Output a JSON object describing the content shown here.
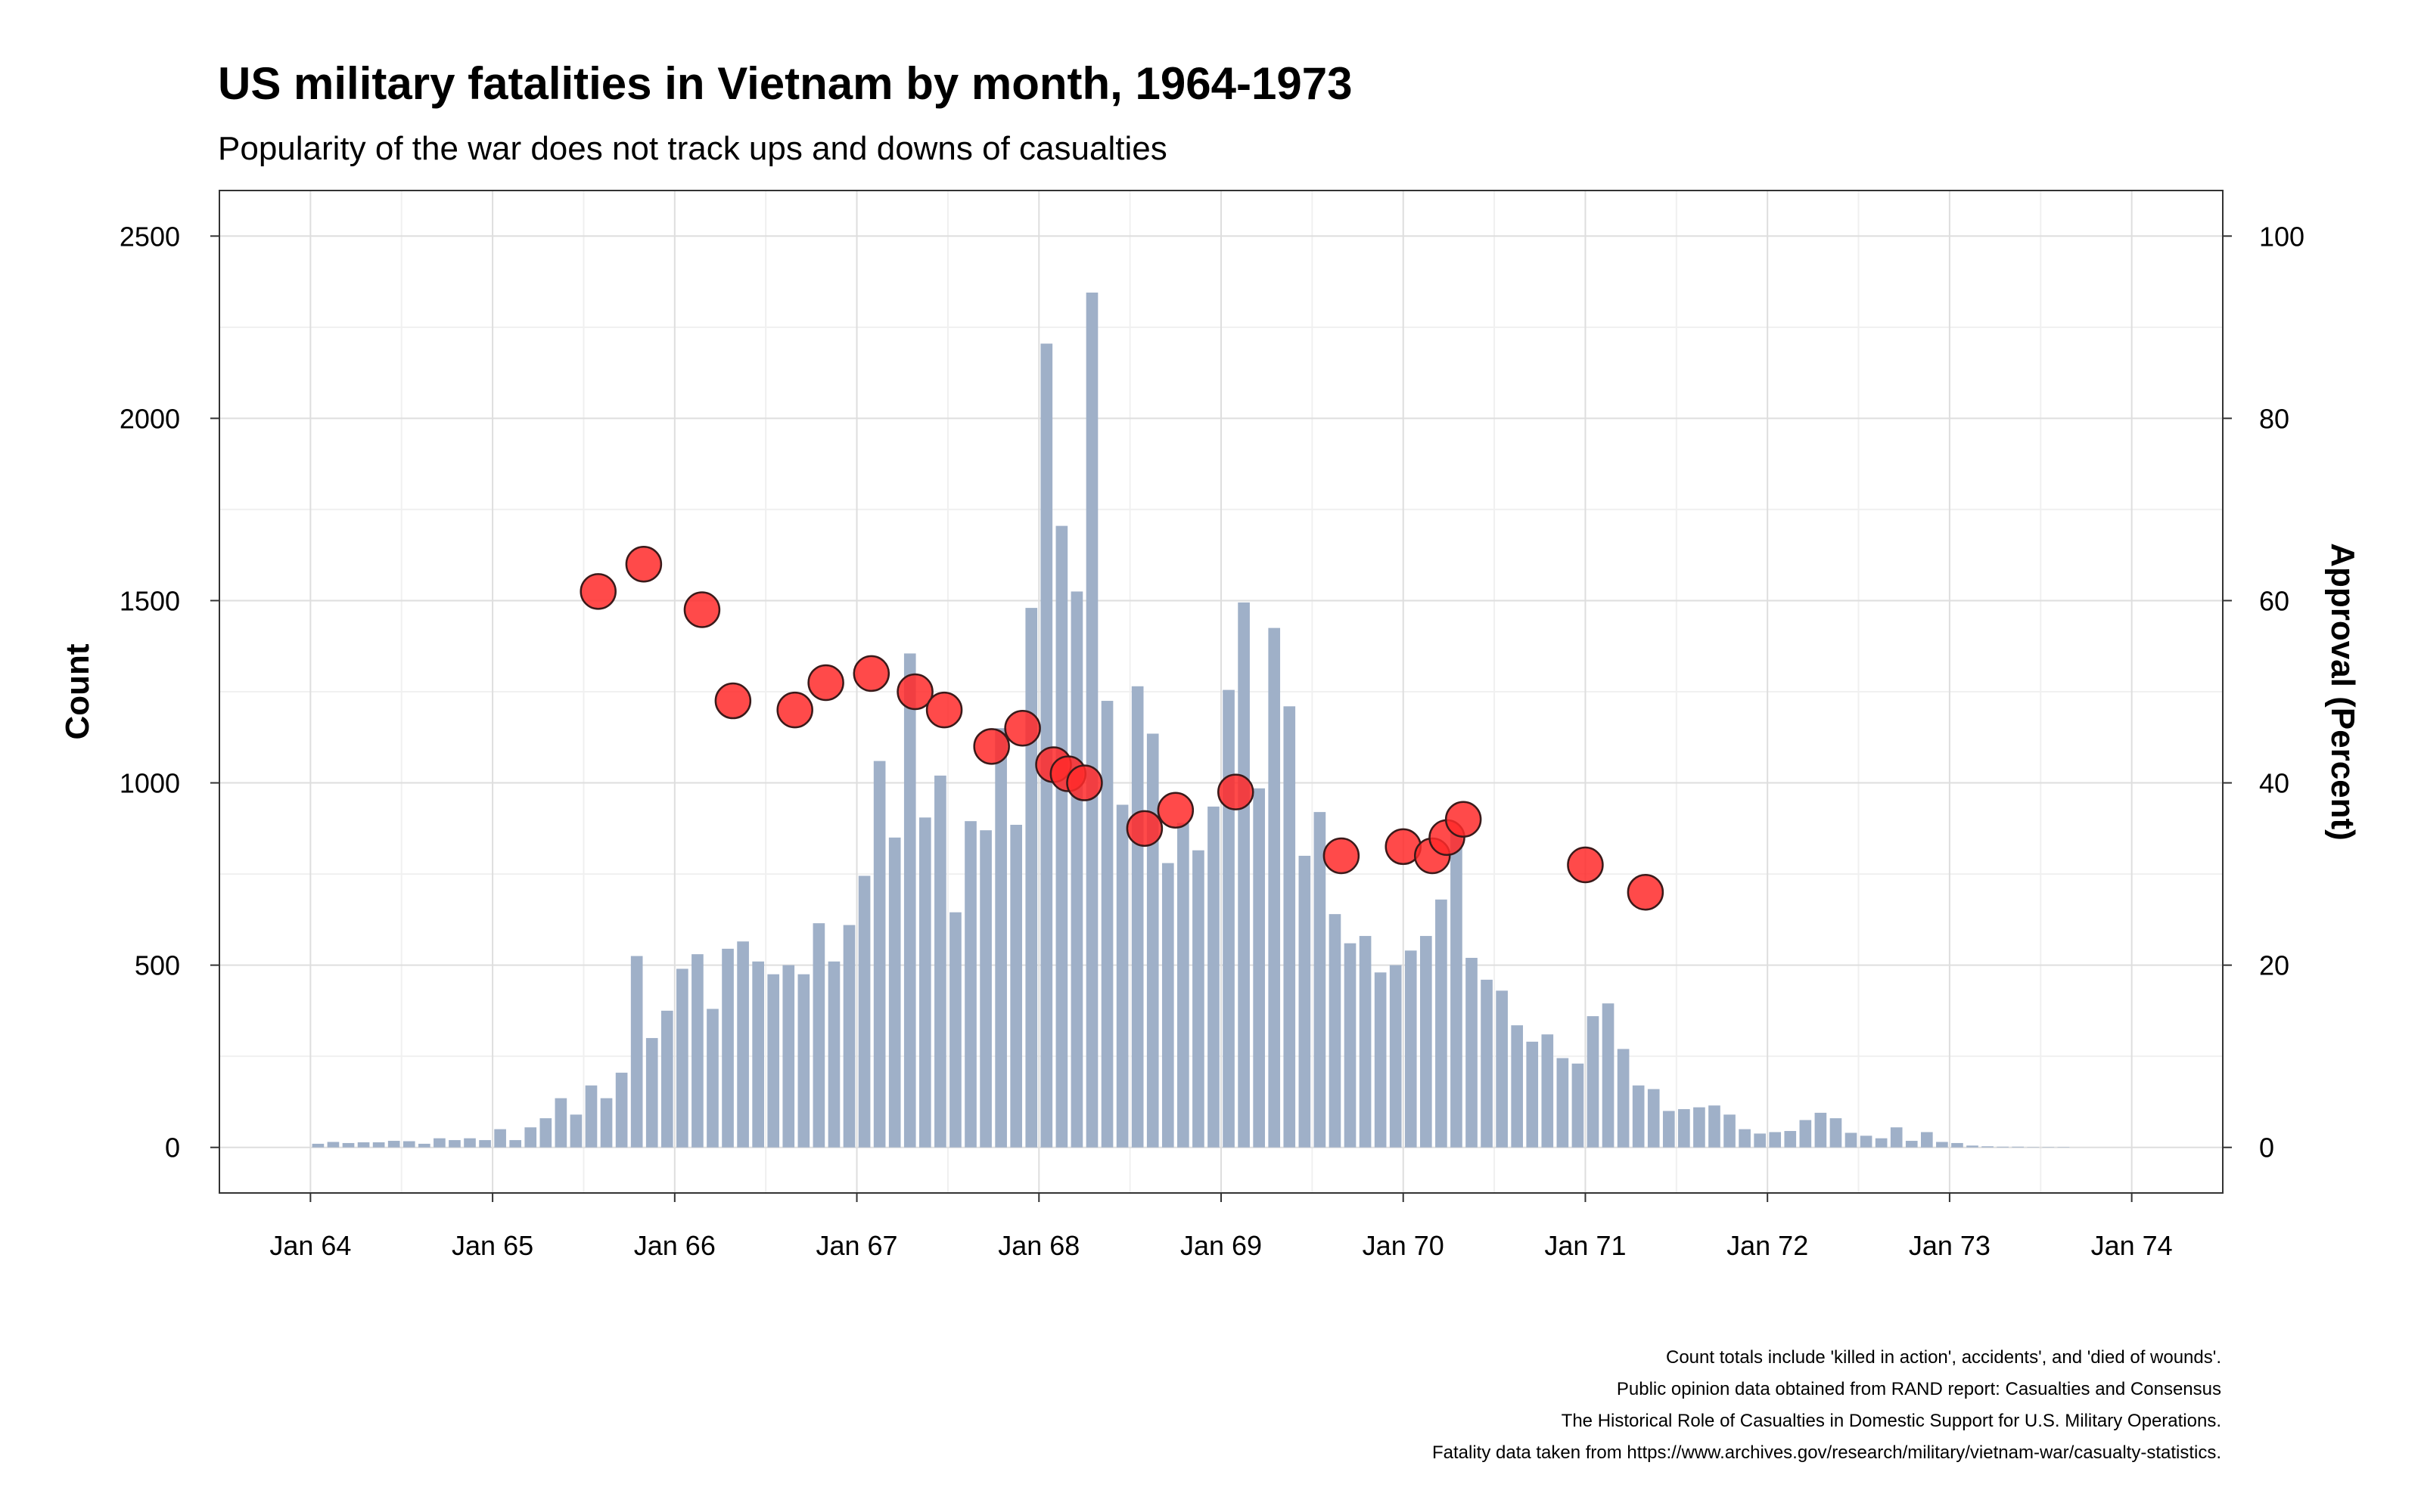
{
  "chart_data": {
    "type": "bar",
    "title": "US military fatalities in Vietnam by month, 1964-1973",
    "subtitle": "Popularity of the war does not track ups and downs of casualties",
    "ylabel": "Count",
    "y2label": "Approval (Percent)",
    "ylim": [
      -125,
      2625
    ],
    "y2lim": [
      -5,
      105
    ],
    "yticks": [
      "0",
      "500",
      "1000",
      "1500",
      "2000",
      "2500"
    ],
    "y2ticks": [
      "0",
      "20",
      "40",
      "60",
      "80",
      "100"
    ],
    "xlim": [
      1963.5,
      1974.5
    ],
    "xticks": [
      {
        "label": "Jan 64",
        "year": 1964
      },
      {
        "label": "Jan 65",
        "year": 1965
      },
      {
        "label": "Jan 66",
        "year": 1966
      },
      {
        "label": "Jan 67",
        "year": 1967
      },
      {
        "label": "Jan 68",
        "year": 1968
      },
      {
        "label": "Jan 69",
        "year": 1969
      },
      {
        "label": "Jan 70",
        "year": 1970
      },
      {
        "label": "Jan 71",
        "year": 1971
      },
      {
        "label": "Jan 72",
        "year": 1972
      },
      {
        "label": "Jan 73",
        "year": 1973
      },
      {
        "label": "Jan 74",
        "year": 1974
      }
    ],
    "grid": true,
    "bar_color": "#9fb0c8",
    "point_color": "#ff2a2a",
    "fatalities": {
      "start_year": 1964,
      "start_month": 1,
      "values": [
        10,
        15,
        12,
        14,
        14,
        18,
        17,
        10,
        25,
        20,
        25,
        20,
        50,
        20,
        55,
        80,
        135,
        90,
        170,
        135,
        205,
        525,
        300,
        375,
        490,
        530,
        380,
        545,
        565,
        510,
        475,
        500,
        475,
        615,
        510,
        610,
        745,
        1060,
        850,
        1355,
        905,
        1020,
        645,
        895,
        870,
        1150,
        885,
        1480,
        2205,
        1705,
        1525,
        2345,
        1225,
        940,
        1265,
        1135,
        780,
        890,
        815,
        935,
        1255,
        1495,
        985,
        1425,
        1210,
        800,
        920,
        640,
        560,
        580,
        480,
        500,
        540,
        580,
        680,
        865,
        520,
        460,
        430,
        335,
        290,
        310,
        245,
        230,
        360,
        395,
        270,
        170,
        160,
        100,
        105,
        110,
        115,
        90,
        50,
        38,
        42,
        45,
        75,
        95,
        80,
        40,
        32,
        25,
        55,
        18,
        42,
        15,
        12,
        5,
        3,
        2,
        2,
        1,
        1,
        1,
        0,
        0,
        0,
        0
      ]
    },
    "approval": {
      "points": [
        {
          "year": 1965.58,
          "value": 61
        },
        {
          "year": 1965.83,
          "value": 64
        },
        {
          "year": 1966.15,
          "value": 59
        },
        {
          "year": 1966.32,
          "value": 49
        },
        {
          "year": 1966.66,
          "value": 48
        },
        {
          "year": 1966.83,
          "value": 51
        },
        {
          "year": 1967.08,
          "value": 52
        },
        {
          "year": 1967.32,
          "value": 50
        },
        {
          "year": 1967.48,
          "value": 48
        },
        {
          "year": 1967.74,
          "value": 44
        },
        {
          "year": 1967.91,
          "value": 46
        },
        {
          "year": 1968.08,
          "value": 42
        },
        {
          "year": 1968.16,
          "value": 41
        },
        {
          "year": 1968.25,
          "value": 40
        },
        {
          "year": 1968.58,
          "value": 35
        },
        {
          "year": 1968.75,
          "value": 37
        },
        {
          "year": 1969.08,
          "value": 39
        },
        {
          "year": 1969.66,
          "value": 32
        },
        {
          "year": 1970.0,
          "value": 33
        },
        {
          "year": 1970.16,
          "value": 32
        },
        {
          "year": 1970.24,
          "value": 34
        },
        {
          "year": 1970.33,
          "value": 36
        },
        {
          "year": 1971.0,
          "value": 31
        },
        {
          "year": 1971.33,
          "value": 28
        }
      ]
    },
    "caption": [
      "Count totals include 'killed in action', accidents', and 'died of wounds'.",
      "Public opinion data obtained from RAND report: Casualties and Consensus",
      "The Historical Role of Casualties in Domestic Support for U.S. Military Operations.",
      "Fatality data taken from https://www.archives.gov/research/military/vietnam-war/casualty-statistics."
    ]
  }
}
